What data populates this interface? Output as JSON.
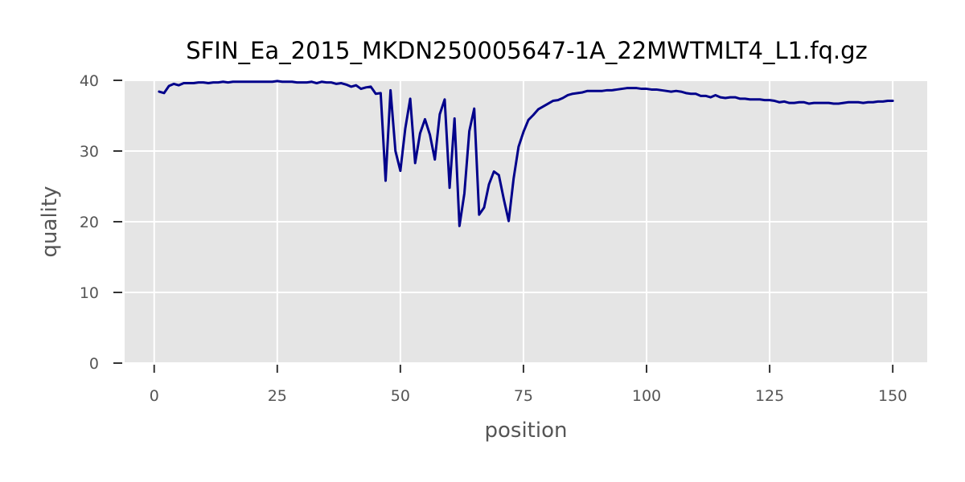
{
  "chart_data": {
    "type": "line",
    "title": "SFIN_Ea_2015_MKDN250005647-1A_22MWTMLT4_L1.fq.gz",
    "xlabel": "position",
    "ylabel": "quality",
    "xlim": [
      -6,
      157
    ],
    "ylim": [
      0,
      40
    ],
    "xticks": [
      0,
      25,
      50,
      75,
      100,
      125,
      150
    ],
    "yticks": [
      0,
      10,
      20,
      30,
      40
    ],
    "grid": true,
    "legend": "none",
    "colors": {
      "line": "#00008b",
      "plot_background": "#e5e5e5",
      "grid": "#ffffff",
      "tick_text": "#555555",
      "title_text": "#000000"
    },
    "series": [
      {
        "x": [
          1,
          2,
          3,
          4,
          5,
          6,
          7,
          8,
          9,
          10,
          11,
          12,
          13,
          14,
          15,
          16,
          17,
          18,
          19,
          20,
          21,
          22,
          23,
          24,
          25,
          26,
          27,
          28,
          29,
          30,
          31,
          32,
          33,
          34,
          35,
          36,
          37,
          38,
          39,
          40,
          41,
          42,
          43,
          44,
          45,
          46,
          47,
          48,
          49,
          50,
          51,
          52,
          53,
          54,
          55,
          56,
          57,
          58,
          59,
          60,
          61,
          62,
          63,
          64,
          65,
          66,
          67,
          68,
          69,
          70,
          71,
          72,
          73,
          74,
          75,
          76,
          77,
          78,
          79,
          80,
          81,
          82,
          83,
          84,
          85,
          86,
          87,
          88,
          89,
          90,
          91,
          92,
          93,
          94,
          95,
          96,
          97,
          98,
          99,
          100,
          101,
          102,
          103,
          104,
          105,
          106,
          107,
          108,
          109,
          110,
          111,
          112,
          113,
          114,
          115,
          116,
          117,
          118,
          119,
          120,
          121,
          122,
          123,
          124,
          125,
          126,
          127,
          128,
          129,
          130,
          131,
          132,
          133,
          134,
          135,
          136,
          137,
          138,
          139,
          140,
          141,
          142,
          143,
          144,
          145,
          146,
          147,
          148,
          149,
          150
        ],
        "y": [
          38.4,
          38.2,
          39.2,
          39.5,
          39.3,
          39.6,
          39.6,
          39.6,
          39.7,
          39.7,
          39.6,
          39.7,
          39.7,
          39.8,
          39.7,
          39.8,
          39.8,
          39.8,
          39.8,
          39.8,
          39.8,
          39.8,
          39.8,
          39.8,
          39.9,
          39.8,
          39.8,
          39.8,
          39.7,
          39.7,
          39.7,
          39.8,
          39.6,
          39.8,
          39.7,
          39.7,
          39.5,
          39.6,
          39.4,
          39.1,
          39.3,
          38.8,
          39.0,
          39.1,
          38.1,
          38.2,
          25.8,
          38.6,
          30.0,
          27.2,
          33.2,
          37.4,
          28.3,
          32.5,
          34.5,
          32.3,
          28.8,
          35.2,
          37.3,
          24.8,
          34.6,
          19.4,
          24.0,
          32.8,
          36.0,
          21.0,
          22.0,
          25.3,
          27.1,
          26.6,
          23.2,
          20.1,
          26.1,
          30.6,
          32.7,
          34.4,
          35.1,
          35.9,
          36.3,
          36.7,
          37.1,
          37.2,
          37.5,
          37.9,
          38.1,
          38.2,
          38.3,
          38.5,
          38.5,
          38.5,
          38.5,
          38.6,
          38.6,
          38.7,
          38.8,
          38.9,
          38.9,
          38.9,
          38.8,
          38.8,
          38.7,
          38.7,
          38.6,
          38.5,
          38.4,
          38.5,
          38.4,
          38.2,
          38.1,
          38.1,
          37.8,
          37.8,
          37.6,
          37.9,
          37.6,
          37.5,
          37.6,
          37.6,
          37.4,
          37.4,
          37.3,
          37.3,
          37.3,
          37.2,
          37.2,
          37.1,
          36.9,
          37.0,
          36.8,
          36.8,
          36.9,
          36.9,
          36.7,
          36.8,
          36.8,
          36.8,
          36.8,
          36.7,
          36.7,
          36.8,
          36.9,
          36.9,
          36.9,
          36.8,
          36.9,
          36.9,
          37.0,
          37.0,
          37.1,
          37.1
        ]
      }
    ]
  }
}
